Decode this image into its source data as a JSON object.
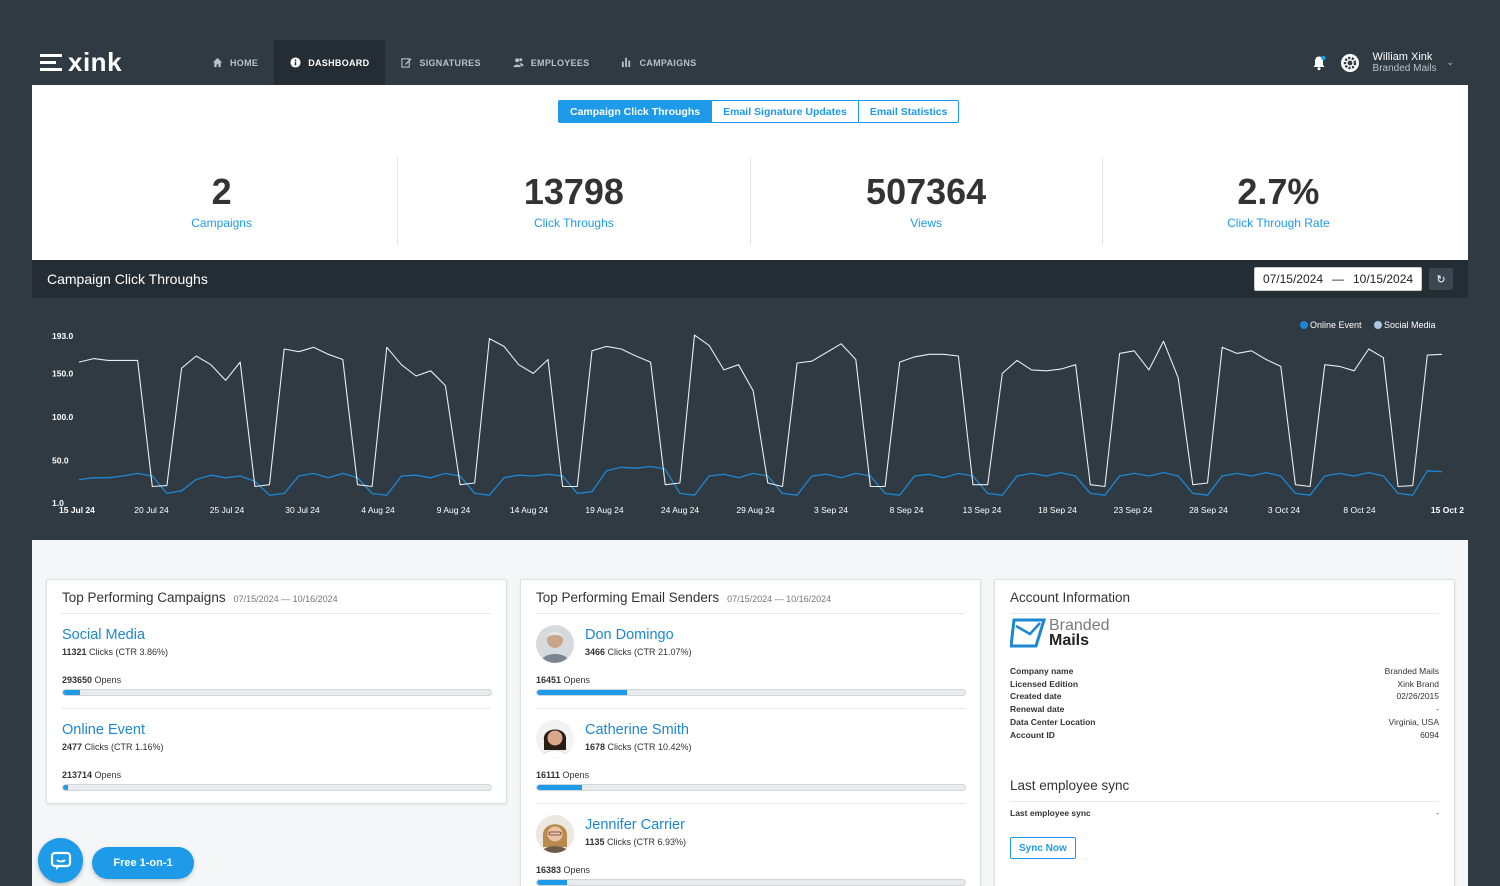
{
  "app": {
    "logo_text": "xink"
  },
  "nav": {
    "items": [
      {
        "label": "HOME",
        "icon": "home-icon"
      },
      {
        "label": "DASHBOARD",
        "icon": "info-icon"
      },
      {
        "label": "SIGNATURES",
        "icon": "edit-icon"
      },
      {
        "label": "EMPLOYEES",
        "icon": "users-icon"
      },
      {
        "label": "CAMPAIGNS",
        "icon": "bar-chart-icon"
      }
    ],
    "active": "DASHBOARD"
  },
  "user": {
    "name": "William Xink",
    "org": "Branded Mails"
  },
  "tabs": [
    "Campaign Click Throughs",
    "Email Signature Updates",
    "Email Statistics"
  ],
  "stats": [
    {
      "value": "2",
      "label": "Campaigns"
    },
    {
      "value": "13798",
      "label": "Click Throughs"
    },
    {
      "value": "507364",
      "label": "Views"
    },
    {
      "value": "2.7%",
      "label": "Click Through Rate"
    }
  ],
  "chart_section": {
    "title": "Campaign Click Throughs",
    "date_from": "07/15/2024",
    "date_separator": "—",
    "date_to": "10/15/2024"
  },
  "chart_data": {
    "type": "line",
    "ylim": [
      1.0,
      193.0
    ],
    "y_ticks": [
      "193.0",
      "150.0",
      "100.0",
      "50.0",
      "1.0"
    ],
    "y_tick_values": [
      193,
      150,
      100,
      50,
      1
    ],
    "legend_position": "top-right",
    "x_tick_labels": [
      "15 Jul 24",
      "20 Jul 24",
      "25 Jul 24",
      "30 Jul 24",
      "4 Aug 24",
      "9 Aug 24",
      "14 Aug 24",
      "19 Aug 24",
      "24 Aug 24",
      "29 Aug 24",
      "3 Sep 24",
      "8 Sep 24",
      "13 Sep 24",
      "18 Sep 24",
      "23 Sep 24",
      "28 Sep 24",
      "3 Oct 24",
      "8 Oct 24",
      "15 Oct 2"
    ],
    "series": [
      {
        "name": "Online Event",
        "color": "#1e87d2",
        "values": [
          28,
          30,
          30,
          32,
          35,
          32,
          12,
          15,
          28,
          33,
          30,
          32,
          26,
          10,
          12,
          32,
          35,
          30,
          35,
          30,
          12,
          10,
          32,
          33,
          30,
          35,
          32,
          12,
          10,
          30,
          33,
          32,
          34,
          32,
          12,
          14,
          38,
          42,
          41,
          43,
          40,
          12,
          10,
          32,
          34,
          30,
          35,
          32,
          12,
          10,
          32,
          34,
          30,
          35,
          32,
          12,
          10,
          32,
          34,
          30,
          35,
          32,
          12,
          10,
          32,
          35,
          32,
          36,
          32,
          12,
          10,
          32,
          35,
          32,
          36,
          32,
          12,
          10,
          32,
          35,
          32,
          36,
          32,
          12,
          10,
          32,
          35,
          32,
          36,
          32,
          12,
          10,
          38,
          37
        ]
      },
      {
        "name": "Social Media",
        "color": "#e8eef3",
        "values": [
          163,
          167,
          165,
          165,
          165,
          20,
          21,
          156,
          170,
          160,
          142,
          163,
          20,
          22,
          178,
          175,
          180,
          172,
          166,
          22,
          20,
          180,
          160,
          147,
          153,
          136,
          22,
          24,
          190,
          181,
          160,
          150,
          166,
          20,
          20,
          176,
          181,
          178,
          170,
          163,
          22,
          24,
          194,
          182,
          154,
          160,
          130,
          24,
          20,
          162,
          164,
          174,
          184,
          166,
          20,
          20,
          163,
          169,
          172,
          172,
          170,
          22,
          22,
          150,
          165,
          154,
          153,
          155,
          160,
          22,
          20,
          173,
          176,
          154,
          187,
          145,
          22,
          24,
          180,
          173,
          176,
          166,
          158,
          22,
          20,
          160,
          158,
          153,
          178,
          168,
          20,
          21,
          171,
          172
        ]
      }
    ]
  },
  "campaigns_card": {
    "title": "Top Performing Campaigns",
    "date": "07/15/2024 — 10/16/2024",
    "items": [
      {
        "name": "Social Media",
        "clicks_bold": "11321",
        "clicks_rest": " Clicks (CTR 3.86%)",
        "opens_bold": "293650",
        "opens_rest": " Opens",
        "progress": 0.04
      },
      {
        "name": "Online Event",
        "clicks_bold": "2477",
        "clicks_rest": " Clicks (CTR 1.16%)",
        "opens_bold": "213714",
        "opens_rest": " Opens",
        "progress": 0.012
      }
    ]
  },
  "senders_card": {
    "title": "Top Performing Email Senders",
    "date": "07/15/2024 — 10/16/2024",
    "items": [
      {
        "name": "Don Domingo",
        "clicks_bold": "3466",
        "clicks_rest": " Clicks (CTR 21.07%)",
        "opens_bold": "16451",
        "opens_rest": " Opens",
        "progress": 0.21
      },
      {
        "name": "Catherine Smith",
        "clicks_bold": "1678",
        "clicks_rest": " Clicks (CTR 10.42%)",
        "opens_bold": "16111",
        "opens_rest": " Opens",
        "progress": 0.104
      },
      {
        "name": "Jennifer Carrier",
        "clicks_bold": "1135",
        "clicks_rest": " Clicks (CTR 6.93%)",
        "opens_bold": "16383",
        "opens_rest": " Opens",
        "progress": 0.07
      }
    ]
  },
  "account_card": {
    "title": "Account Information",
    "logo_top": "Branded",
    "logo_bottom": "Mails",
    "rows": [
      {
        "key": "Company name",
        "value": "Branded Mails"
      },
      {
        "key": "Licensed Edition",
        "value": "Xink Brand"
      },
      {
        "key": "Created date",
        "value": "02/26/2015"
      },
      {
        "key": "Renewal date",
        "value": "-"
      },
      {
        "key": "Data Center Location",
        "value": "Virginia, USA"
      },
      {
        "key": "Account ID",
        "value": "6094"
      }
    ],
    "sync_title": "Last employee sync",
    "sync_row_key": "Last employee sync",
    "sync_row_value": "-",
    "sync_button": "Sync Now"
  },
  "floating": {
    "free_label": "Free 1-on-1"
  }
}
